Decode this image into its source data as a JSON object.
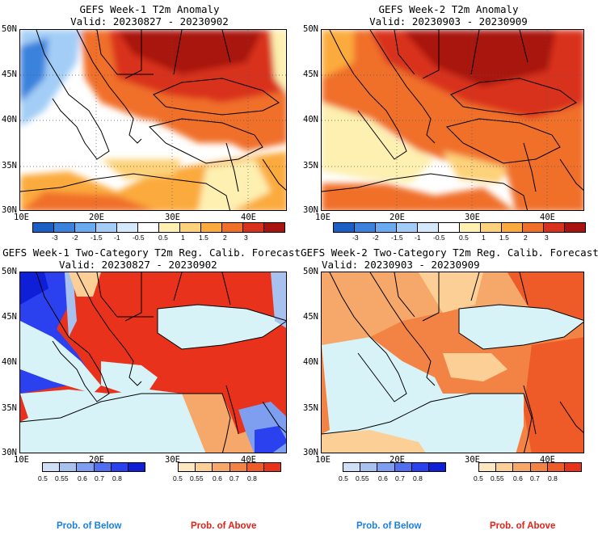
{
  "panels": [
    {
      "title": "GEFS Week-1 T2m Anomaly",
      "valid": "Valid: 20230827 - 20230902"
    },
    {
      "title": "GEFS Week-2 T2m Anomaly",
      "valid": "Valid: 20230903 - 20230909"
    },
    {
      "title": "GEFS Week-1 Two-Category T2m Reg. Calib. Forecast",
      "valid": "Valid: 20230827 - 20230902"
    },
    {
      "title": "GEFS Week-2 Two-Category T2m Reg. Calib. Forecast",
      "valid": "Valid: 20230903 - 20230909"
    }
  ],
  "lat_labels": [
    "50N",
    "45N",
    "40N",
    "35N",
    "30N"
  ],
  "lon_labels": [
    "10E",
    "20E",
    "30E",
    "40E"
  ],
  "anomaly_colorbar": {
    "labels": [
      "-3",
      "-2",
      "-1.5",
      "-1",
      "-0.5",
      "0.5",
      "1",
      "1.5",
      "2",
      "3"
    ],
    "colors": [
      "#1b5fc4",
      "#3a82dc",
      "#6aaaf0",
      "#a3cdf6",
      "#d4eafa",
      "#ffffff",
      "#fdf0b0",
      "#fdd27a",
      "#fbaa3d",
      "#f0702a",
      "#d9321c",
      "#a8130f"
    ]
  },
  "prob_below_colorbar": {
    "labels": [
      "0.5",
      "0.55",
      "0.6",
      "0.7",
      "0.8"
    ],
    "colors": [
      "#cfe0f6",
      "#a8c2f0",
      "#7e9ef0",
      "#4f6ef0",
      "#2b40ee",
      "#0f1fd8"
    ]
  },
  "prob_above_colorbar": {
    "labels": [
      "0.5",
      "0.55",
      "0.6",
      "0.7",
      "0.8"
    ],
    "colors": [
      "#fde7c0",
      "#fbcf96",
      "#f6a86a",
      "#f28344",
      "#ee5a28",
      "#e8321b"
    ]
  },
  "captions": {
    "below": "Prob. of Below",
    "above": "Prob. of Above",
    "below_color": "#1a7fe0",
    "above_color": "#e0241a"
  }
}
